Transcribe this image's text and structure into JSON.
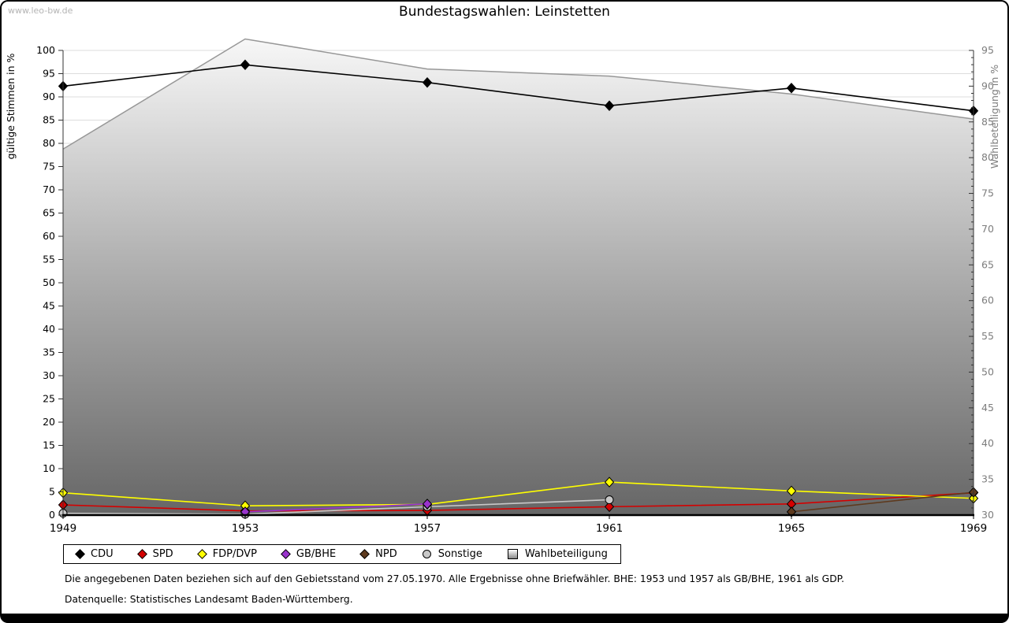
{
  "page": {
    "watermark": "www.leo-bw.de",
    "title": "Bundestagswahlen: Leinstetten",
    "footnote1": "Die angegebenen Daten beziehen sich auf den Gebietsstand vom 27.05.1970. Alle Ergebnisse ohne Briefwähler. BHE: 1953 und 1957 als GB/BHE, 1961 als GDP.",
    "footnote2": "Datenquelle: Statistisches Landesamt Baden-Württemberg."
  },
  "chart_data": {
    "type": "line",
    "title": "Bundestagswahlen: Leinstetten",
    "x": [
      1949,
      1953,
      1957,
      1961,
      1965,
      1969
    ],
    "ylabel_left": "gültige Stimmen in %",
    "ylabel_right": "Wahlbeteiligung in %",
    "ylim_left": [
      0,
      100
    ],
    "ylim_right": [
      30,
      95
    ],
    "ytick_step_left": 5,
    "ytick_major_right": 5,
    "ytick_minor_right": 1,
    "grid": true,
    "legend_position": "bottom",
    "colors": {
      "grid": "#dcdcdc",
      "axis": "#333333",
      "right_axis_text": "#7d7d7d",
      "area_line": "#979797",
      "area_top": "#f8f8f8",
      "area_bottom": "#666666"
    },
    "series": [
      {
        "name": "CDU",
        "axis": "left",
        "type": "line",
        "marker": "diamond",
        "color": "#000000",
        "z": 7,
        "values": [
          92.3,
          96.9,
          93.1,
          88.1,
          91.9,
          87.0
        ]
      },
      {
        "name": "SPD",
        "axis": "left",
        "type": "line",
        "marker": "diamond",
        "color": "#d40000",
        "z": 2,
        "values": [
          2.2,
          0.9,
          1.0,
          1.8,
          2.4,
          4.8
        ]
      },
      {
        "name": "FDP/DVP",
        "axis": "left",
        "type": "line",
        "marker": "diamond",
        "color": "#ffff00",
        "z": 4,
        "values": [
          4.8,
          2.0,
          2.3,
          7.1,
          5.2,
          3.6
        ]
      },
      {
        "name": "GB/BHE",
        "axis": "left",
        "type": "line",
        "marker": "diamond",
        "color": "#9933cc",
        "z": 5,
        "values": [
          null,
          0.7,
          2.4,
          null,
          null,
          null
        ]
      },
      {
        "name": "NPD",
        "axis": "left",
        "type": "line",
        "marker": "diamond",
        "color": "#5e3a1e",
        "z": 6,
        "values": [
          null,
          null,
          null,
          null,
          0.7,
          4.9
        ]
      },
      {
        "name": "Sonstige",
        "axis": "left",
        "type": "line",
        "marker": "circle",
        "color": "#c8c8c8",
        "z": 3,
        "values": [
          0.4,
          0.2,
          1.8,
          3.3,
          null,
          null
        ]
      },
      {
        "name": "Wahlbeteiligung",
        "axis": "right",
        "type": "area",
        "marker": "square",
        "color": "#979797",
        "z": 1,
        "values": [
          81.2,
          96.6,
          92.4,
          91.4,
          88.9,
          85.4
        ]
      }
    ]
  }
}
